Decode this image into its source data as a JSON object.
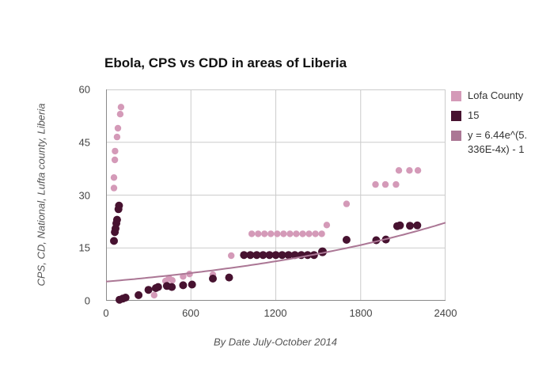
{
  "chart_data": {
    "type": "scatter",
    "title": "Ebola, CPS vs CDD in areas of Liberia",
    "xlabel": "By Date July-October 2014",
    "ylabel": "CPS, CD, National, Lufta county, Liberia",
    "xlim": [
      0,
      2400
    ],
    "ylim": [
      0,
      60
    ],
    "x_ticks": [
      "0",
      "600",
      "1200",
      "1800",
      "2400"
    ],
    "y_ticks": [
      "0",
      "15",
      "30",
      "45",
      "60"
    ],
    "grid": true,
    "legend_position": "right",
    "colors": {
      "grid": "#cccccc",
      "axis": "#8a8a8a",
      "background": "#ffffff"
    },
    "series": [
      {
        "name": "Lofa County",
        "type": "scatter",
        "color": "#d49ab8",
        "r": 4.2,
        "points": [
          [
            56,
            32
          ],
          [
            56,
            35
          ],
          [
            62,
            40
          ],
          [
            64,
            42.5
          ],
          [
            78,
            46.5
          ],
          [
            84,
            49
          ],
          [
            100,
            53
          ],
          [
            106,
            55
          ],
          [
            340,
            1.6
          ],
          [
            420,
            5.6
          ],
          [
            445,
            6.4
          ],
          [
            468,
            5.8
          ],
          [
            545,
            6.9
          ],
          [
            590,
            7.6
          ],
          [
            755,
            7.4
          ],
          [
            885,
            12.8
          ],
          [
            1030,
            19
          ],
          [
            1075,
            19
          ],
          [
            1120,
            19
          ],
          [
            1165,
            19
          ],
          [
            1210,
            19
          ],
          [
            1255,
            19
          ],
          [
            1300,
            19
          ],
          [
            1345,
            19
          ],
          [
            1390,
            19
          ],
          [
            1435,
            19
          ],
          [
            1480,
            19
          ],
          [
            1525,
            19
          ],
          [
            1560,
            21.5
          ],
          [
            1700,
            27.5
          ],
          [
            1905,
            33
          ],
          [
            1975,
            33
          ],
          [
            2050,
            33
          ],
          [
            2070,
            37
          ],
          [
            2145,
            37
          ],
          [
            2205,
            37
          ]
        ]
      },
      {
        "name": "15",
        "type": "scatter",
        "color": "#471230",
        "r": 5,
        "points": [
          [
            56,
            17
          ],
          [
            62,
            19.5
          ],
          [
            67,
            20.5
          ],
          [
            73,
            22
          ],
          [
            78,
            23
          ],
          [
            88,
            26
          ],
          [
            92,
            27
          ],
          [
            95,
            0.3
          ],
          [
            118,
            0.6
          ],
          [
            138,
            0.9
          ],
          [
            230,
            1.6
          ],
          [
            300,
            3.1
          ],
          [
            352,
            3.6
          ],
          [
            368,
            3.9
          ],
          [
            430,
            4.2
          ],
          [
            465,
            3.9
          ],
          [
            545,
            4.4
          ],
          [
            608,
            4.6
          ],
          [
            755,
            6.3
          ],
          [
            870,
            6.6
          ],
          [
            975,
            13
          ],
          [
            1020,
            13
          ],
          [
            1065,
            13
          ],
          [
            1110,
            13
          ],
          [
            1155,
            13
          ],
          [
            1200,
            13
          ],
          [
            1245,
            13
          ],
          [
            1290,
            13
          ],
          [
            1335,
            13
          ],
          [
            1380,
            13
          ],
          [
            1425,
            13
          ],
          [
            1470,
            13
          ],
          [
            1530,
            13.9,
            5.5
          ],
          [
            1700,
            17.3
          ],
          [
            1910,
            17.2
          ],
          [
            1978,
            17.4
          ],
          [
            2058,
            21.2
          ],
          [
            2078,
            21.4
          ],
          [
            2148,
            21.3
          ],
          [
            2200,
            21.4
          ]
        ]
      },
      {
        "name": "y = 6.44e^(5.336E-4x) - 1",
        "type": "trendline",
        "color": "#ab7795",
        "width": 2,
        "a": 6.44,
        "b": 0.0005336,
        "c": -1,
        "x_range": [
          0,
          2400
        ]
      }
    ]
  },
  "legend": {
    "items": [
      {
        "name": "Lofa County",
        "color": "#d49ab8",
        "lines": [
          "Lofa County"
        ]
      },
      {
        "name": "15",
        "color": "#471230",
        "lines": [
          "15"
        ]
      },
      {
        "name": "trendline",
        "color": "#ab7795",
        "equation": "y = 6.44e^(5.336E-4x) - 1",
        "lines": [
          "y = 6.44e^(5.",
          "336E-4x) - 1"
        ]
      }
    ]
  }
}
